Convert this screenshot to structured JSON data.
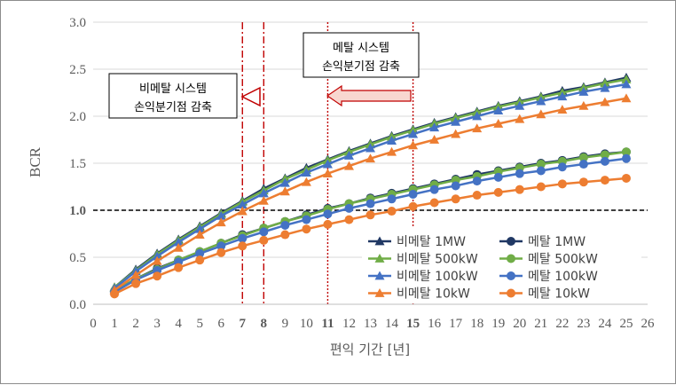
{
  "chart_data": {
    "type": "line",
    "title": "",
    "xlabel": "편익 기간 [년]",
    "ylabel": "BCR",
    "xlim": [
      0,
      26
    ],
    "ylim": [
      0,
      3.0
    ],
    "x_ticks": [
      "0",
      "1",
      "2",
      "3",
      "4",
      "5",
      "6",
      "7",
      "8",
      "9",
      "10",
      "11",
      "12",
      "13",
      "14",
      "15",
      "16",
      "17",
      "18",
      "19",
      "20",
      "21",
      "22",
      "23",
      "24",
      "25",
      "26"
    ],
    "x_ticks_highlighted": [
      "7",
      "8",
      "11",
      "15"
    ],
    "highlight_color": "#c00000",
    "y_ticks": [
      "0.0",
      "0.5",
      "1.0",
      "1.5",
      "2.0",
      "2.5",
      "3.0"
    ],
    "y_tick_bold": "1.0",
    "grid": true,
    "legend_position": "bottom-right",
    "reference_line": {
      "y": 1.0,
      "style": "dashed",
      "color": "#000000"
    },
    "vertical_markers": [
      {
        "x": 7,
        "style": "dash-dot",
        "color": "#c00000"
      },
      {
        "x": 8,
        "style": "dash-dot",
        "color": "#c00000"
      },
      {
        "x": 11,
        "style": "dotted",
        "color": "#c00000"
      },
      {
        "x": 15,
        "style": "dotted",
        "color": "#c00000"
      }
    ],
    "annotations": [
      {
        "lines": [
          "비메탈 시스템",
          "손익분기점 감축"
        ],
        "arrow": "hollow-triangle-left"
      },
      {
        "lines": [
          "메탈 시스템",
          "손익분기점 감축"
        ],
        "arrow": "block-arrow-left"
      }
    ],
    "x": [
      1,
      2,
      3,
      4,
      5,
      6,
      7,
      8,
      9,
      10,
      11,
      12,
      13,
      14,
      15,
      16,
      17,
      18,
      19,
      20,
      21,
      22,
      23,
      24,
      25
    ],
    "series": [
      {
        "name": "비메탈 1MW",
        "color": "#203864",
        "marker": "triangle",
        "values": [
          0.18,
          0.37,
          0.54,
          0.69,
          0.83,
          0.97,
          1.1,
          1.23,
          1.34,
          1.45,
          1.54,
          1.63,
          1.71,
          1.79,
          1.86,
          1.93,
          1.99,
          2.05,
          2.11,
          2.16,
          2.21,
          2.27,
          2.31,
          2.36,
          2.41
        ]
      },
      {
        "name": "메탈 1MW",
        "color": "#203864",
        "marker": "circle",
        "values": [
          0.14,
          0.27,
          0.38,
          0.47,
          0.56,
          0.65,
          0.74,
          0.81,
          0.88,
          0.95,
          1.02,
          1.07,
          1.13,
          1.18,
          1.23,
          1.28,
          1.33,
          1.38,
          1.42,
          1.46,
          1.5,
          1.53,
          1.57,
          1.6,
          1.62
        ]
      },
      {
        "name": "비메탈 500kW",
        "color": "#70ad47",
        "marker": "triangle",
        "values": [
          0.18,
          0.36,
          0.53,
          0.68,
          0.82,
          0.96,
          1.09,
          1.21,
          1.33,
          1.43,
          1.53,
          1.62,
          1.7,
          1.78,
          1.85,
          1.92,
          1.98,
          2.04,
          2.1,
          2.15,
          2.2,
          2.25,
          2.3,
          2.35,
          2.39
        ]
      },
      {
        "name": "메탈 500kW",
        "color": "#70ad47",
        "marker": "circle",
        "values": [
          0.14,
          0.27,
          0.37,
          0.47,
          0.56,
          0.65,
          0.73,
          0.81,
          0.88,
          0.94,
          1.01,
          1.07,
          1.12,
          1.17,
          1.22,
          1.27,
          1.32,
          1.36,
          1.41,
          1.45,
          1.49,
          1.52,
          1.56,
          1.59,
          1.62
        ]
      },
      {
        "name": "비메탈 100kW",
        "color": "#4472c4",
        "marker": "triangle",
        "values": [
          0.17,
          0.35,
          0.51,
          0.66,
          0.8,
          0.94,
          1.06,
          1.18,
          1.29,
          1.4,
          1.49,
          1.58,
          1.66,
          1.74,
          1.81,
          1.88,
          1.94,
          2.0,
          2.06,
          2.11,
          2.16,
          2.21,
          2.26,
          2.3,
          2.34
        ]
      },
      {
        "name": "메탈 100kW",
        "color": "#4472c4",
        "marker": "circle",
        "values": [
          0.13,
          0.26,
          0.36,
          0.45,
          0.54,
          0.62,
          0.7,
          0.77,
          0.84,
          0.9,
          0.96,
          1.02,
          1.07,
          1.12,
          1.17,
          1.22,
          1.26,
          1.31,
          1.35,
          1.39,
          1.42,
          1.46,
          1.49,
          1.52,
          1.55
        ]
      },
      {
        "name": "비메탈 10kW",
        "color": "#ed7d31",
        "marker": "triangle",
        "values": [
          0.15,
          0.31,
          0.46,
          0.6,
          0.74,
          0.87,
          0.99,
          1.1,
          1.2,
          1.3,
          1.39,
          1.47,
          1.55,
          1.62,
          1.69,
          1.75,
          1.81,
          1.87,
          1.92,
          1.97,
          2.02,
          2.07,
          2.11,
          2.15,
          2.19
        ]
      },
      {
        "name": "메탈 10kW",
        "color": "#ed7d31",
        "marker": "circle",
        "values": [
          0.11,
          0.22,
          0.3,
          0.39,
          0.47,
          0.55,
          0.62,
          0.68,
          0.74,
          0.8,
          0.85,
          0.9,
          0.95,
          0.99,
          1.04,
          1.08,
          1.12,
          1.16,
          1.19,
          1.22,
          1.25,
          1.28,
          1.3,
          1.32,
          1.34
        ]
      }
    ]
  }
}
